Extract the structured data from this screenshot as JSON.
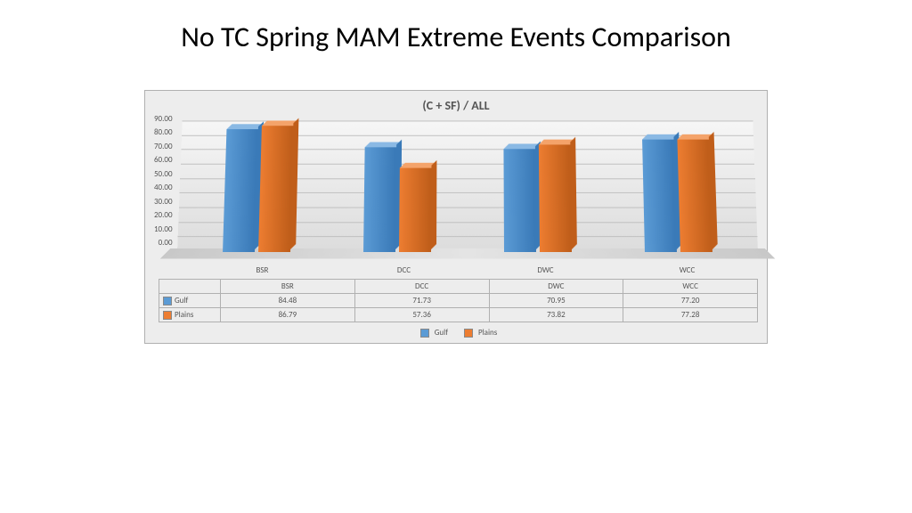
{
  "title": "No TC Spring MAM Extreme Events Comparison",
  "chart": {
    "type": "bar",
    "title": "(C + SF) / ALL",
    "categories": [
      "BSR",
      "DCC",
      "DWC",
      "WCC"
    ],
    "ymax": 90,
    "ytick_step": 10,
    "yticks": [
      "90.00",
      "80.00",
      "70.00",
      "60.00",
      "50.00",
      "40.00",
      "30.00",
      "20.00",
      "10.00",
      "0.00"
    ],
    "series": [
      {
        "name": "Gulf",
        "color_front": "#5b9bd5",
        "color_top": "#8ab9e4",
        "color_side": "#3a7ab8",
        "values": [
          84.48,
          71.73,
          70.95,
          77.2
        ],
        "display": [
          "84.48",
          "71.73",
          "70.95",
          "77.20"
        ]
      },
      {
        "name": "Plains",
        "color_front": "#ed7d31",
        "color_top": "#f4a36a",
        "color_side": "#c05e1a",
        "values": [
          86.79,
          57.36,
          73.82,
          77.28
        ],
        "display": [
          "86.79",
          "57.36",
          "73.82",
          "77.28"
        ]
      }
    ],
    "background_color": "#ededed",
    "grid_color": "#bfbfbf",
    "label_fontsize": 9,
    "title_fontsize": 14
  }
}
